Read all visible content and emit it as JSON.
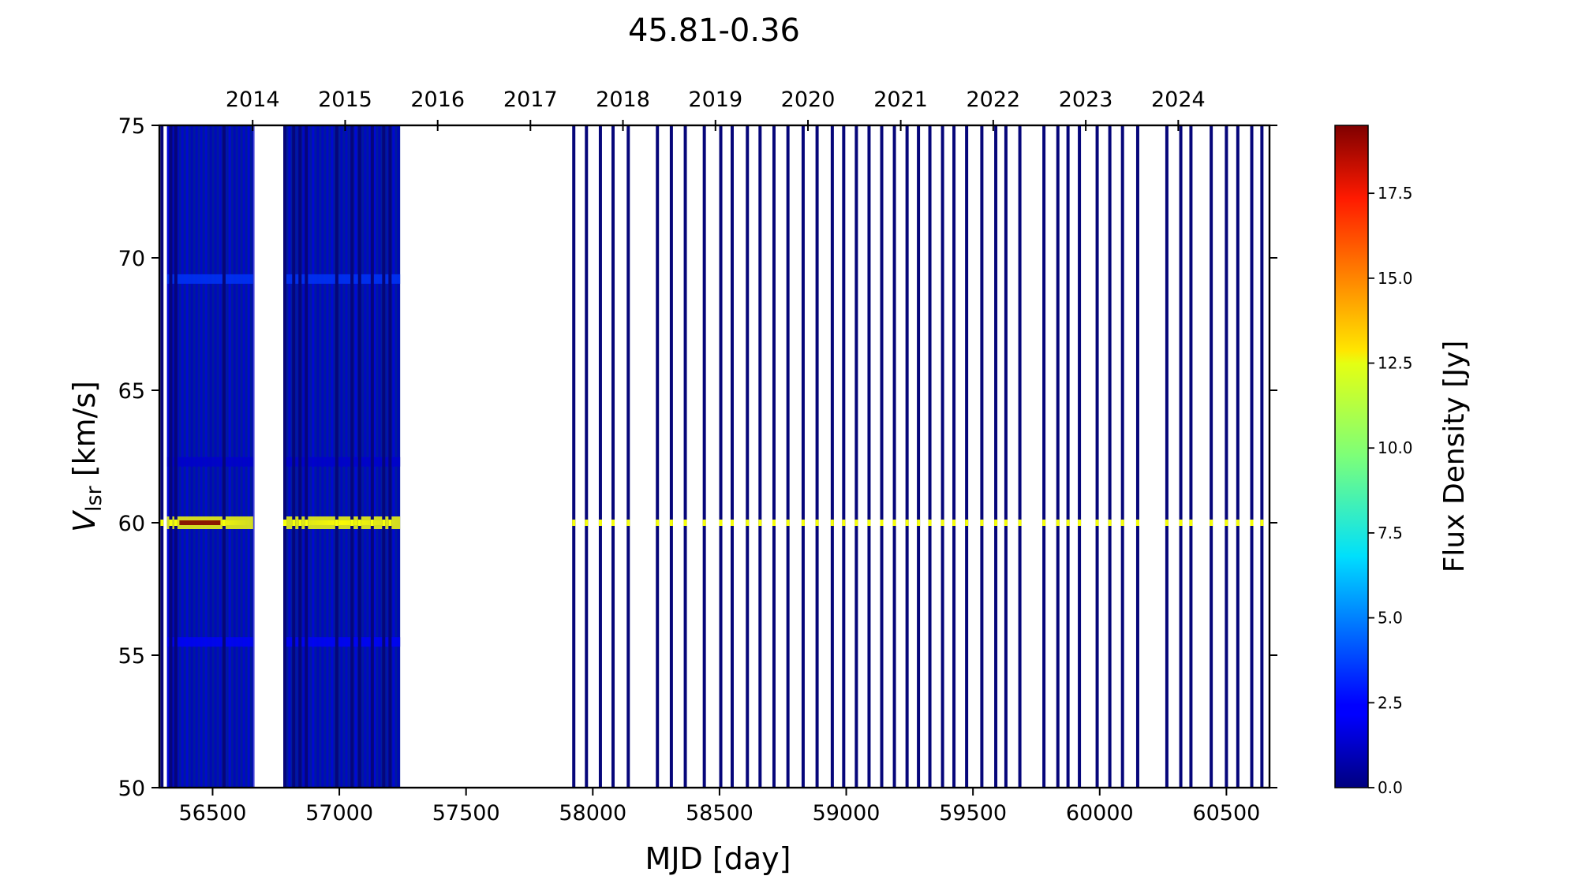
{
  "chart_data": {
    "type": "heatmap",
    "title": "45.81-0.36",
    "xlabel": "MJD [day]",
    "ylabel_main": "V",
    "ylabel_sub": "lsr",
    "ylabel_rest": " [km/s]",
    "colorbar_label": "Flux Density [Jy]",
    "xlim": [
      56290,
      60670
    ],
    "ylim": [
      50,
      75
    ],
    "clim": [
      0,
      19.5
    ],
    "colormap": "jet",
    "x_ticks": [
      56500,
      57000,
      57500,
      58000,
      58500,
      59000,
      59500,
      60000,
      60500
    ],
    "y_ticks": [
      50,
      55,
      60,
      65,
      70,
      75
    ],
    "colorbar_ticks": [
      "0.0",
      "2.5",
      "5.0",
      "7.5",
      "10.0",
      "12.5",
      "15.0",
      "17.5"
    ],
    "top_axis": {
      "labels": [
        "2014",
        "2015",
        "2016",
        "2017",
        "2018",
        "2019",
        "2020",
        "2021",
        "2022",
        "2023",
        "2024"
      ],
      "mjd": [
        56658,
        57023,
        57388,
        57754,
        58119,
        58484,
        58849,
        59215,
        59580,
        59945,
        60310
      ]
    },
    "dense_blocks": [
      {
        "start": 56320,
        "end": 56660
      },
      {
        "start": 56780,
        "end": 57240
      }
    ],
    "observations": [
      56300,
      56335,
      56355,
      56545,
      56785,
      56820,
      56845,
      56870,
      56990,
      57050,
      57080,
      57130,
      57175,
      57200,
      57925,
      57975,
      58030,
      58080,
      58140,
      58255,
      58310,
      58365,
      58440,
      58505,
      58550,
      58610,
      58660,
      58715,
      58770,
      58830,
      58885,
      58945,
      58990,
      59040,
      59090,
      59140,
      59190,
      59240,
      59285,
      59330,
      59380,
      59425,
      59475,
      59535,
      59590,
      59630,
      59685,
      59780,
      59835,
      59875,
      59920,
      59990,
      60040,
      60090,
      60150,
      60265,
      60320,
      60360,
      60440,
      60500,
      60545,
      60600,
      60640
    ],
    "spectral_features": [
      {
        "velocity": 60.0,
        "flux": 12
      },
      {
        "velocity": 69.2,
        "flux": 3.5
      },
      {
        "velocity": 55.5,
        "flux": 2.5
      },
      {
        "velocity": 62.3,
        "flux": 1.5
      }
    ],
    "peak": {
      "mjd": 56450,
      "velocity": 60.0,
      "flux": 19.5
    }
  }
}
